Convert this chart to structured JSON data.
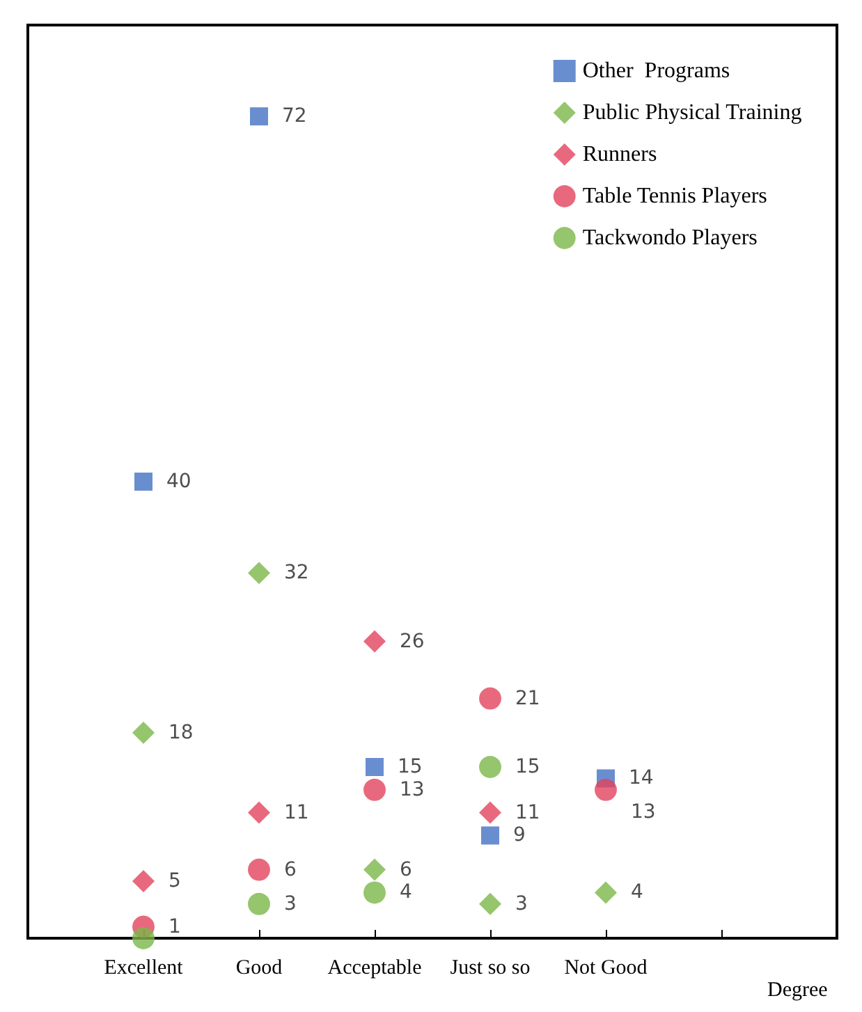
{
  "chart_data": {
    "type": "scatter",
    "categories": [
      "Excellent",
      "Good",
      "Acceptable",
      "Just so so",
      "Not Good"
    ],
    "xlabel": "Degree",
    "legend": "top right",
    "grid": false,
    "tick_labels": "x",
    "series": [
      {
        "name": "Other  Programs",
        "color": "#4472c4",
        "marker": "square",
        "values": [
          40,
          72,
          15,
          9,
          14
        ],
        "value_labels": [
          "40",
          "72",
          "15",
          "9",
          "14"
        ]
      },
      {
        "name": "Public Physical Training",
        "color": "#7ab648",
        "marker": "diamond",
        "values": [
          18,
          32,
          6,
          3,
          4
        ],
        "value_labels": [
          "18",
          "32",
          "6",
          "3",
          "4"
        ]
      },
      {
        "name": "Runners",
        "color": "#e2445c",
        "marker": "diamond",
        "values": [
          5,
          11,
          26,
          11,
          null
        ],
        "value_labels": [
          "5",
          "11",
          "26",
          "11",
          null
        ]
      },
      {
        "name": "Table Tennis Players",
        "color": "#e2445c",
        "marker": "circle",
        "values": [
          1,
          6,
          13,
          21,
          13
        ],
        "value_labels": [
          "1",
          "6",
          "13",
          "21",
          "13"
        ]
      },
      {
        "name": "Tackwondo Players",
        "color": "#7ab648",
        "marker": "circle",
        "values": [
          0,
          3,
          4,
          15,
          null
        ],
        "value_labels": [
          null,
          "3",
          "4",
          "15",
          null
        ]
      }
    ]
  }
}
